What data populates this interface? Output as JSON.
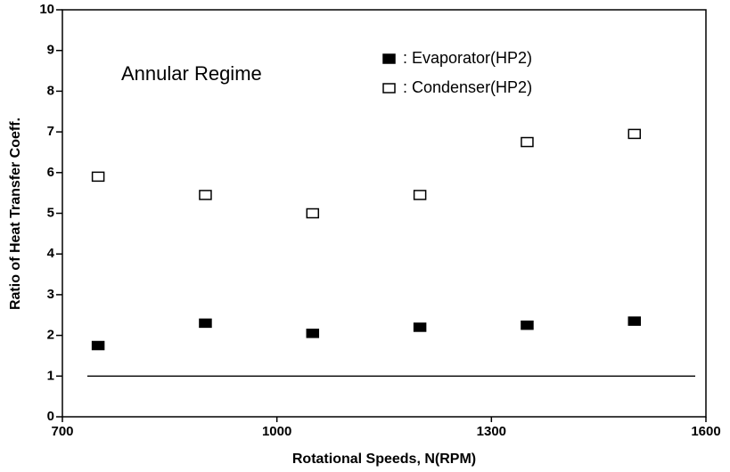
{
  "chart_data": {
    "type": "scatter",
    "xlabel": "Rotational Speeds, N(RPM)",
    "ylabel": "Ratio of Heat Transfer Coeff.",
    "annotation": "Annular Regime",
    "xlim": [
      700,
      1600
    ],
    "xticks": [
      700,
      1000,
      1300,
      1600
    ],
    "ylim": [
      0,
      10
    ],
    "yticks": [
      0,
      1,
      2,
      3,
      4,
      5,
      6,
      7,
      8,
      9,
      10
    ],
    "reference_line": 1,
    "series": [
      {
        "name": ": Evaporator(HP2)",
        "color": "#000000",
        "marker": "filled",
        "x": [
          750,
          900,
          1050,
          1200,
          1350,
          1500
        ],
        "values": [
          1.75,
          2.3,
          2.05,
          2.2,
          2.25,
          2.35
        ]
      },
      {
        "name": ": Condenser(HP2)",
        "color": "#000000",
        "marker": "open",
        "x": [
          750,
          900,
          1050,
          1200,
          1350,
          1500
        ],
        "values": [
          5.9,
          5.45,
          5.0,
          5.45,
          6.75,
          6.95
        ]
      }
    ]
  }
}
